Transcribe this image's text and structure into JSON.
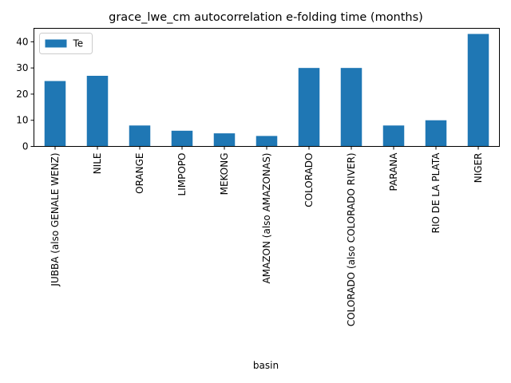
{
  "chart_data": {
    "type": "bar",
    "title": "grace_lwe_cm autocorrelation e-folding time (months)",
    "xlabel": "basin",
    "ylabel": "",
    "categories": [
      "JUBBA (also GENALE WENZ)",
      "NILE",
      "ORANGE",
      "LIMPOPO",
      "MEKONG",
      "AMAZON (also AMAZONAS)",
      "COLORADO",
      "COLORADO (also COLORADO RIVER)",
      "PARANA",
      "RIO DE LA PLATA",
      "NIGER"
    ],
    "series": [
      {
        "name": "Te",
        "color": "#1f77b4",
        "values": [
          25,
          27,
          8,
          6,
          5,
          4,
          30,
          30,
          8,
          10,
          43
        ]
      }
    ],
    "ylim": [
      0,
      45.15
    ],
    "yticks": [
      0,
      10,
      20,
      30,
      40
    ],
    "grid": false,
    "legend_position": "upper-left"
  }
}
